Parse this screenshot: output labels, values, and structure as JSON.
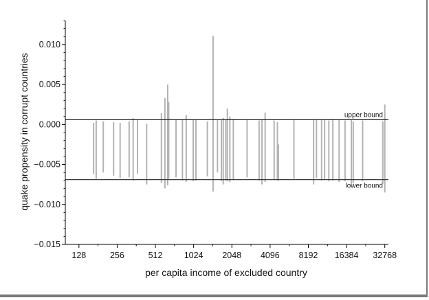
{
  "chart_data": {
    "type": "bar",
    "title": "",
    "xlabel": "per capita income of excluded country",
    "ylabel": "quake propensity in corrupt countries",
    "x_scale": "log2",
    "xlim": [
      100,
      35000
    ],
    "ylim": [
      -0.015,
      0.013
    ],
    "xticks": [
      128,
      256,
      512,
      1024,
      2048,
      4096,
      8192,
      16384,
      32768
    ],
    "xtick_labels": [
      "128",
      "256",
      "512",
      "1024",
      "2048",
      "4096",
      "8192",
      "16384",
      "32768"
    ],
    "yticks": [
      -0.015,
      -0.01,
      -0.005,
      0.0,
      0.005,
      0.01
    ],
    "ytick_labels": [
      "−0.015",
      "−0.010",
      "−0.005",
      "0.000",
      "0.005",
      "0.010"
    ],
    "grid": false,
    "bar_color": "#b3b3b3",
    "reference_lines": [
      {
        "label": "upper bound",
        "value": 0.0006
      },
      {
        "label": "lower bound",
        "value": -0.0069
      }
    ],
    "bars": [
      {
        "x": 167,
        "low": -0.0062,
        "high": 0.0002
      },
      {
        "x": 175,
        "low": -0.0068,
        "high": 0.0005
      },
      {
        "x": 199,
        "low": -0.006,
        "high": 0.0004
      },
      {
        "x": 240,
        "low": -0.0064,
        "high": 0.0003
      },
      {
        "x": 270,
        "low": -0.0067,
        "high": 0.0002
      },
      {
        "x": 318,
        "low": -0.0066,
        "high": 0.0004
      },
      {
        "x": 342,
        "low": -0.007,
        "high": 0.0008
      },
      {
        "x": 370,
        "low": -0.0062,
        "high": 0.0006
      },
      {
        "x": 437,
        "low": -0.0075,
        "high": 0.0001
      },
      {
        "x": 571,
        "low": -0.0073,
        "high": 0.0014
      },
      {
        "x": 608,
        "low": -0.008,
        "high": 0.0033
      },
      {
        "x": 640,
        "low": -0.0076,
        "high": 0.005
      },
      {
        "x": 652,
        "low": -0.0068,
        "high": 0.0028
      },
      {
        "x": 744,
        "low": -0.0066,
        "high": 0.0006
      },
      {
        "x": 836,
        "low": -0.007,
        "high": 0.0006
      },
      {
        "x": 895,
        "low": -0.0072,
        "high": 0.0012
      },
      {
        "x": 1016,
        "low": -0.0071,
        "high": 0.0006
      },
      {
        "x": 1068,
        "low": -0.007,
        "high": 0.0006
      },
      {
        "x": 1314,
        "low": -0.0065,
        "high": 0.0004
      },
      {
        "x": 1457,
        "low": -0.0084,
        "high": 0.0111
      },
      {
        "x": 1578,
        "low": -0.006,
        "high": 0.0006
      },
      {
        "x": 1693,
        "low": -0.0071,
        "high": 0.0006
      },
      {
        "x": 1751,
        "low": -0.0075,
        "high": 0.0008
      },
      {
        "x": 1833,
        "low": -0.007,
        "high": 0.0006
      },
      {
        "x": 1887,
        "low": -0.0071,
        "high": 0.002
      },
      {
        "x": 1976,
        "low": -0.0072,
        "high": 0.001
      },
      {
        "x": 2102,
        "low": -0.0069,
        "high": 0.0007
      },
      {
        "x": 2701,
        "low": -0.0066,
        "high": 0.0006
      },
      {
        "x": 3356,
        "low": -0.007,
        "high": 0.0005
      },
      {
        "x": 3535,
        "low": -0.0075,
        "high": 0.0006
      },
      {
        "x": 3744,
        "low": -0.0072,
        "high": 0.0015
      },
      {
        "x": 4407,
        "low": -0.0069,
        "high": 0.0005
      },
      {
        "x": 4677,
        "low": -0.007,
        "high": 0.0003
      },
      {
        "x": 4763,
        "low": -0.007,
        "high": -0.0025
      },
      {
        "x": 6308,
        "low": -0.0068,
        "high": 0.0006
      },
      {
        "x": 9012,
        "low": -0.0075,
        "high": 0.0006
      },
      {
        "x": 9495,
        "low": -0.0067,
        "high": 0.0006
      },
      {
        "x": 10419,
        "low": -0.007,
        "high": 0.0006
      },
      {
        "x": 11007,
        "low": -0.0069,
        "high": 0.0006
      },
      {
        "x": 11881,
        "low": -0.0071,
        "high": 0.0005
      },
      {
        "x": 12782,
        "low": -0.007,
        "high": 0.0007
      },
      {
        "x": 14311,
        "low": -0.0072,
        "high": 0.0006
      },
      {
        "x": 15937,
        "low": -0.0071,
        "high": 0.0005
      },
      {
        "x": 17878,
        "low": -0.0075,
        "high": 0.0006
      },
      {
        "x": 18501,
        "low": -0.0073,
        "high": 0.0004
      },
      {
        "x": 21916,
        "low": -0.0071,
        "high": 0.0005
      },
      {
        "x": 31591,
        "low": -0.0074,
        "high": 0.0004
      },
      {
        "x": 32768,
        "low": -0.0085,
        "high": 0.0025
      }
    ]
  }
}
